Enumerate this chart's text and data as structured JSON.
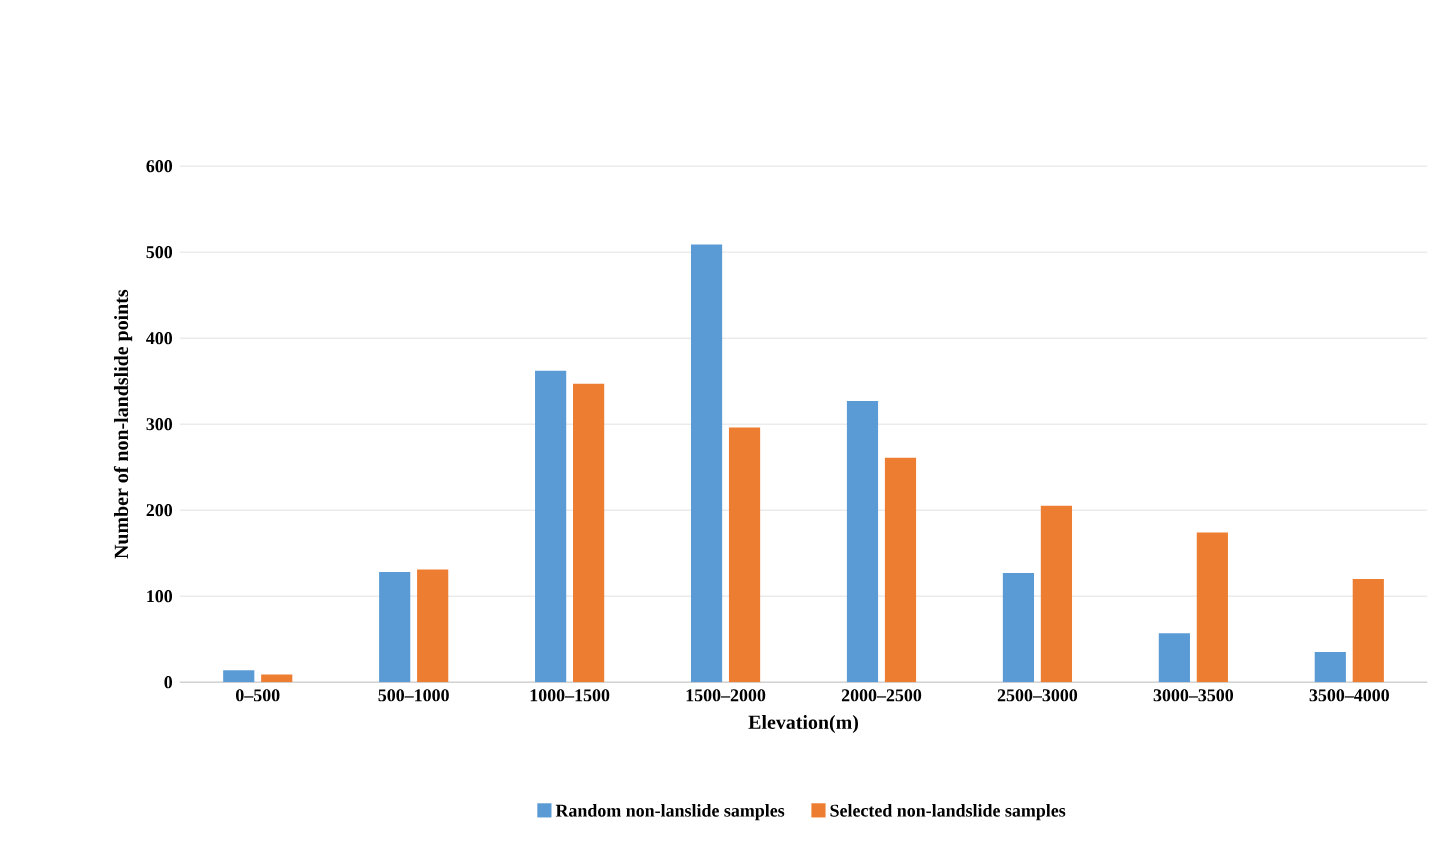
{
  "chart_data": {
    "type": "bar",
    "xlabel": "Elevation(m)",
    "ylabel": "Number of non-landslide points",
    "categories": [
      "0–500",
      "500–1000",
      "1000–1500",
      "1500–2000",
      "2000–2500",
      "2500–3000",
      "3000–3500",
      "3500–4000"
    ],
    "series": [
      {
        "name": "Random non-lanslide samples",
        "color": "#5b9bd5",
        "values": [
          14,
          128,
          362,
          509,
          327,
          127,
          57,
          35
        ]
      },
      {
        "name": "Selected non-landslide samples",
        "color": "#ed7d31",
        "values": [
          9,
          131,
          347,
          296,
          261,
          205,
          174,
          120
        ]
      }
    ],
    "ylim": [
      0,
      600
    ],
    "yticks": [
      0,
      100,
      200,
      300,
      400,
      500,
      600
    ],
    "grid": "y",
    "legend": "bottom"
  }
}
